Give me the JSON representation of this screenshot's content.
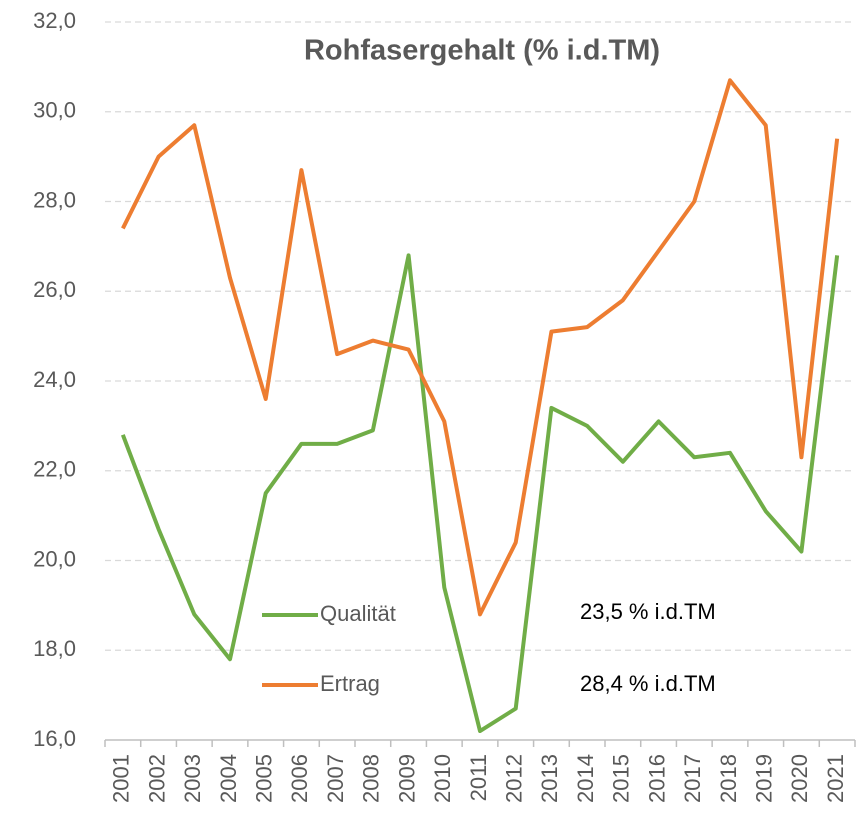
{
  "chart_data": {
    "type": "line",
    "title": "Rohfasergehalt (% i.d.TM)",
    "categories": [
      "2001",
      "2002",
      "2003",
      "2004",
      "2005",
      "2006",
      "2007",
      "2008",
      "2009",
      "2010",
      "2011",
      "2012",
      "2013",
      "2014",
      "2015",
      "2016",
      "2017",
      "2018",
      "2019",
      "2020",
      "2021"
    ],
    "series": [
      {
        "name": "Qualität",
        "color": "#70ad47",
        "values": [
          22.8,
          20.7,
          18.8,
          17.8,
          21.5,
          22.6,
          22.6,
          22.9,
          26.8,
          19.4,
          16.2,
          16.7,
          23.4,
          23.0,
          22.2,
          23.1,
          22.3,
          22.4,
          21.1,
          20.2,
          26.8
        ]
      },
      {
        "name": "Ertrag",
        "color": "#ed7d31",
        "values": [
          27.4,
          29.0,
          29.7,
          26.3,
          23.6,
          28.7,
          24.6,
          24.9,
          24.7,
          23.1,
          18.8,
          20.4,
          25.1,
          25.2,
          25.8,
          26.9,
          28.0,
          30.7,
          29.7,
          22.3,
          29.4
        ]
      }
    ],
    "annotations": [
      "23,5 % i.d.TM",
      "28,4 % i.d.TM"
    ],
    "ylim": [
      16,
      32
    ],
    "yticks": [
      {
        "value": 16,
        "label": "16,0"
      },
      {
        "value": 18,
        "label": "18,0"
      },
      {
        "value": 20,
        "label": "20,0"
      },
      {
        "value": 22,
        "label": "22,0"
      },
      {
        "value": 24,
        "label": "24,0"
      },
      {
        "value": 26,
        "label": "26,0"
      },
      {
        "value": 28,
        "label": "28,0"
      },
      {
        "value": 30,
        "label": "30,0"
      },
      {
        "value": 32,
        "label": "32,0"
      }
    ],
    "grid": true
  }
}
